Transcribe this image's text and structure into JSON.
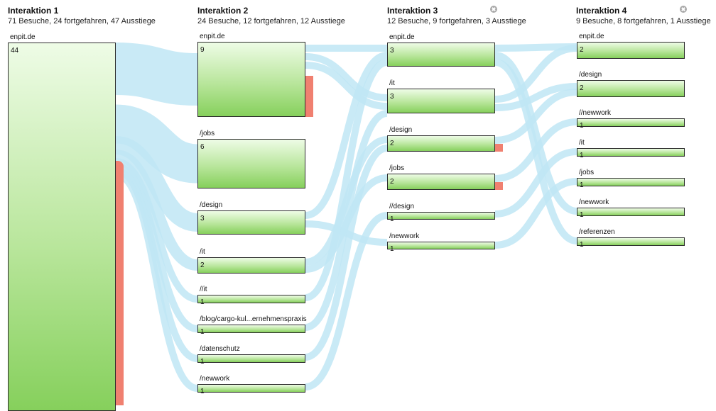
{
  "columns": [
    {
      "title": "Interaktion 1",
      "stats": "71 Besuche, 24 fortgefahren, 47 Ausstiege",
      "closable": false,
      "nodes": [
        {
          "label": "enpit.de",
          "count": "44"
        }
      ]
    },
    {
      "title": "Interaktion 2",
      "stats": "24 Besuche, 12 fortgefahren, 12 Ausstiege",
      "closable": false,
      "nodes": [
        {
          "label": "enpit.de",
          "count": "9"
        },
        {
          "label": "/jobs",
          "count": "6"
        },
        {
          "label": "/design",
          "count": "3"
        },
        {
          "label": "/it",
          "count": "2"
        },
        {
          "label": "//it",
          "count": "1"
        },
        {
          "label": "/blog/cargo-kul...ernehmenspraxis",
          "count": "1"
        },
        {
          "label": "/datenschutz",
          "count": "1"
        },
        {
          "label": "/newwork",
          "count": "1"
        }
      ]
    },
    {
      "title": "Interaktion 3",
      "stats": "12 Besuche, 9 fortgefahren, 3 Ausstiege",
      "closable": true,
      "nodes": [
        {
          "label": "enpit.de",
          "count": "3"
        },
        {
          "label": "/it",
          "count": "3"
        },
        {
          "label": "/design",
          "count": "2"
        },
        {
          "label": "/jobs",
          "count": "2"
        },
        {
          "label": "//design",
          "count": "1"
        },
        {
          "label": "/newwork",
          "count": "1"
        }
      ]
    },
    {
      "title": "Interaktion 4",
      "stats": "9 Besuche, 8 fortgefahren, 1 Ausstiege",
      "closable": true,
      "nodes": [
        {
          "label": "enpit.de",
          "count": "2"
        },
        {
          "label": "/design",
          "count": "2"
        },
        {
          "label": "//newwork",
          "count": "1"
        },
        {
          "label": "/it",
          "count": "1"
        },
        {
          "label": "/jobs",
          "count": "1"
        },
        {
          "label": "/newwork",
          "count": "1"
        },
        {
          "label": "/referenzen",
          "count": "1"
        }
      ]
    }
  ],
  "colors": {
    "flow": "#bfe6f5",
    "exit": "#f08070",
    "node_border": "#2c2c2c"
  },
  "icons": {
    "remove_column": "close-circle-icon"
  }
}
